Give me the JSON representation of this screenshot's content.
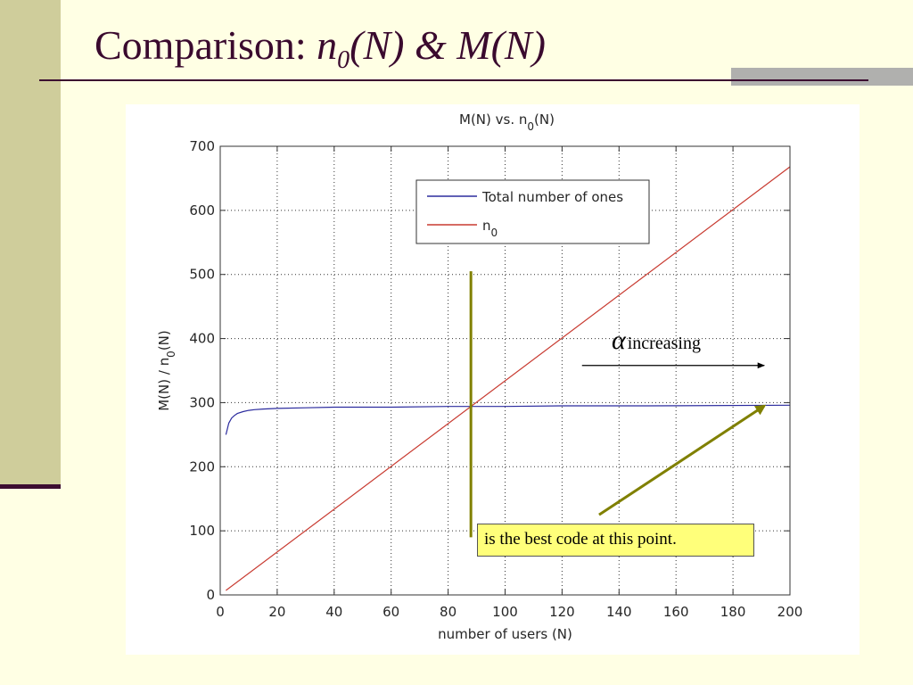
{
  "slide": {
    "title_text": "Comparison: ",
    "title_math_n": "n",
    "title_math_sub": "0",
    "title_math_rest": "(N) & M(N)"
  },
  "annotations": {
    "alpha_symbol": "α",
    "alpha_text": "increasing",
    "callout_text": "is the best code at this point."
  },
  "colors": {
    "background": "#ffffe4",
    "sidebar": "#cfcd9b",
    "rule": "#3c0c30",
    "series_total": "#2b2b9e",
    "series_n0": "#c83a30",
    "marker_line": "#808000",
    "callout_fill": "#ffff7a"
  },
  "chart_data": {
    "type": "line",
    "title": "M(N) vs. n_0(N)",
    "title_main": "M(N) vs. n",
    "title_sub": "0",
    "title_tail": "(N)",
    "xlabel": "number of users (N)",
    "ylabel": "M(N) / n_0(N)",
    "ylabel_main": "M(N) / n",
    "ylabel_sub": "0",
    "ylabel_tail": "(N)",
    "xlim": [
      0,
      200
    ],
    "ylim": [
      0,
      700
    ],
    "xticks": [
      0,
      20,
      40,
      60,
      80,
      100,
      120,
      140,
      160,
      180,
      200
    ],
    "yticks": [
      0,
      100,
      200,
      300,
      400,
      500,
      600,
      700
    ],
    "grid": true,
    "legend_placement": "top-center",
    "series": [
      {
        "name": "Total number of ones",
        "legend_main": "Total number of ones",
        "legend_sub": "",
        "color": "#2b2b9e",
        "x": [
          2,
          3,
          4,
          5,
          6,
          8,
          10,
          12,
          15,
          20,
          30,
          40,
          60,
          80,
          100,
          120,
          150,
          200
        ],
        "y": [
          250,
          268,
          276,
          280,
          283,
          286,
          288,
          289,
          290,
          291,
          292,
          293,
          293,
          294,
          294,
          295,
          295,
          296
        ]
      },
      {
        "name": "n_0",
        "legend_main": "n",
        "legend_sub": "0",
        "color": "#c83a30",
        "x": [
          2,
          200
        ],
        "y": [
          7,
          668
        ]
      }
    ],
    "annotations": {
      "vertical_marker_x": 88,
      "vertical_marker_y_range": [
        90,
        505
      ],
      "alpha_arrow": {
        "x_from": 127,
        "x_to": 191,
        "y": 358
      },
      "callout_arrow": {
        "x_from": 133,
        "y_from": 125,
        "x_to": 191,
        "y_to": 295
      }
    }
  }
}
